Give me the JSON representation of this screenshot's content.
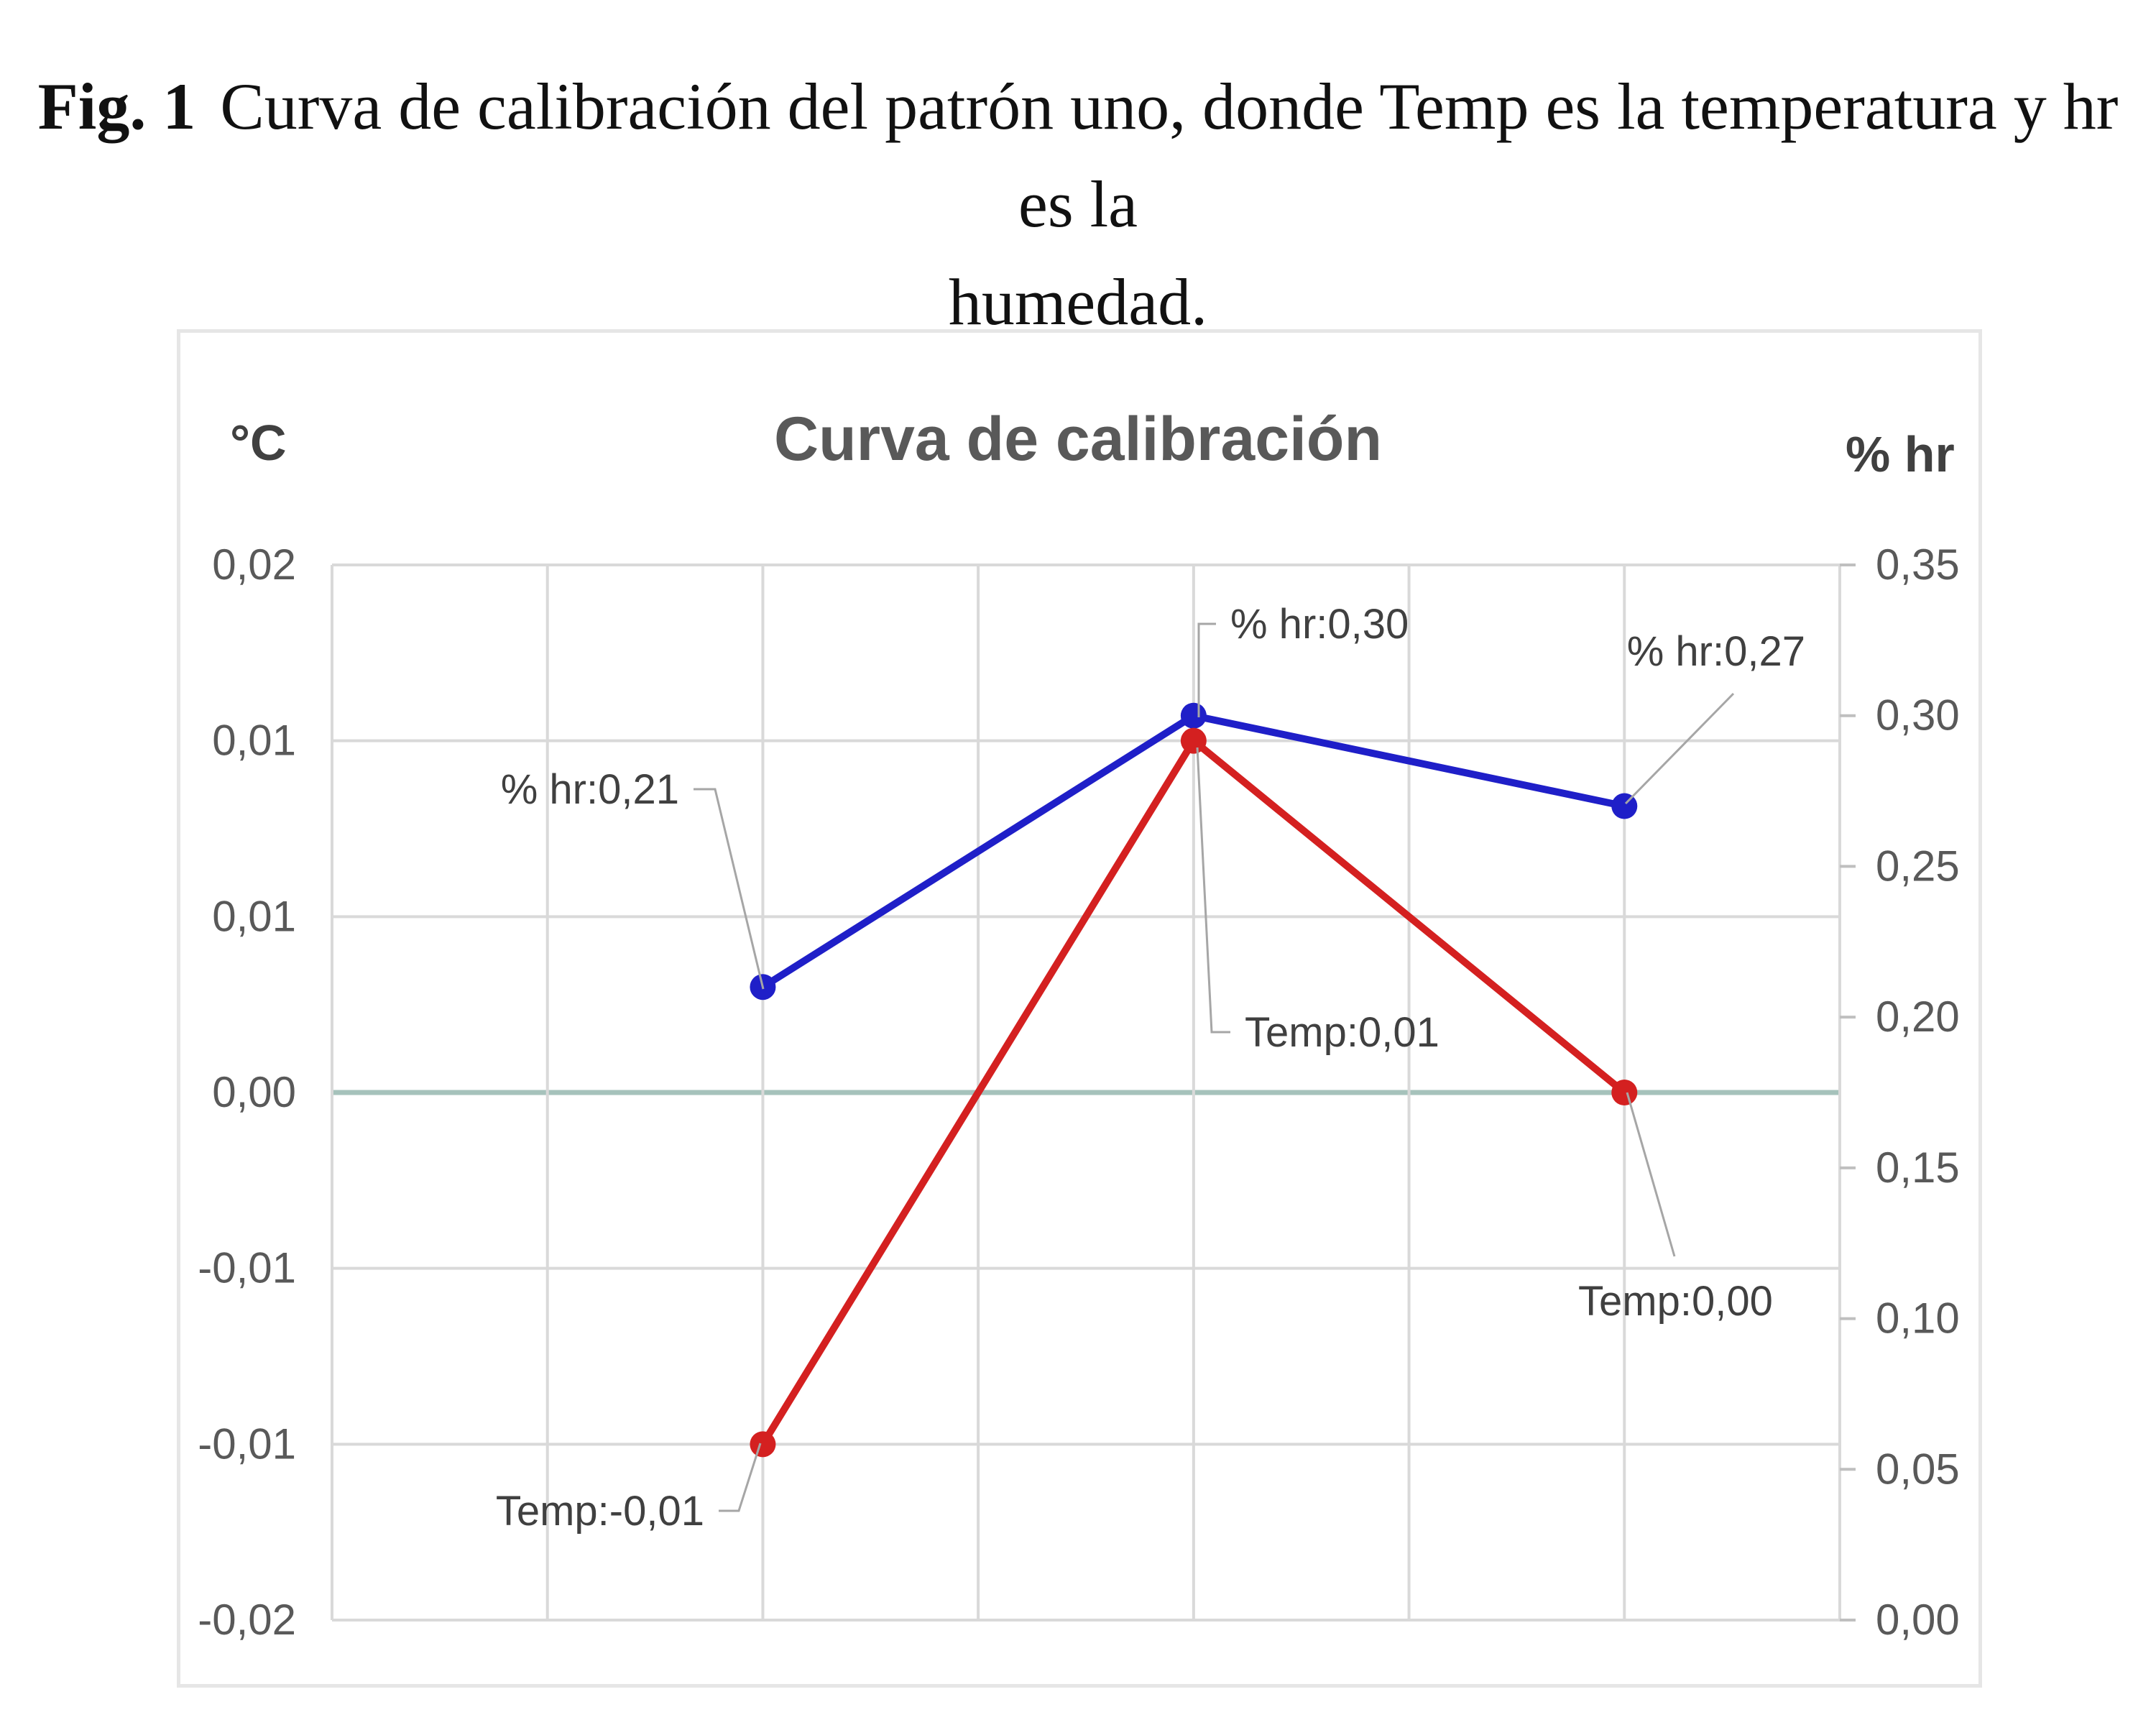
{
  "figure": {
    "number_label": "Fig. 1",
    "caption_line1": "Curva de calibración del patrón uno, donde Temp es la temperatura y hr es la",
    "caption_line2": "humedad."
  },
  "chart_data": {
    "type": "line",
    "title": "Curva de calibración",
    "y_left_unit": "°C",
    "y_right_unit": "% hr",
    "x_points": [
      1,
      2,
      3
    ],
    "xlim": [
      0,
      3.5
    ],
    "x_gridlines": [
      0.5,
      1,
      1.5,
      2,
      2.5,
      3
    ],
    "y_left_ticks": [
      "0,02",
      "0,01",
      "0,01",
      "0,00",
      "-0,01",
      "-0,01",
      "-0,02"
    ],
    "y_left_tick_values": [
      0.015,
      0.01,
      0.005,
      0,
      -0.005,
      -0.01,
      -0.015
    ],
    "y_left_lim": [
      -0.015,
      0.015
    ],
    "y_right_ticks": [
      "0,35",
      "0,30",
      "0,25",
      "0,20",
      "0,15",
      "0,10",
      "0,05",
      "0,00"
    ],
    "y_right_tick_values": [
      0.35,
      0.3,
      0.25,
      0.2,
      0.15,
      0.1,
      0.05,
      0
    ],
    "y_right_lim": [
      0,
      0.35
    ],
    "grid": true,
    "series": [
      {
        "name": "% hr",
        "axis": "right",
        "color": "#1f1fc8",
        "values": [
          0.21,
          0.3,
          0.27
        ],
        "labels": [
          "% hr:0,21",
          "% hr:0,30",
          "% hr:0,27"
        ]
      },
      {
        "name": "Temp",
        "axis": "left",
        "color": "#d42020",
        "values": [
          -0.01,
          0.01,
          0.0
        ],
        "labels": [
          "Temp:-0,01",
          "Temp:0,01",
          "Temp:0,00"
        ]
      }
    ]
  }
}
